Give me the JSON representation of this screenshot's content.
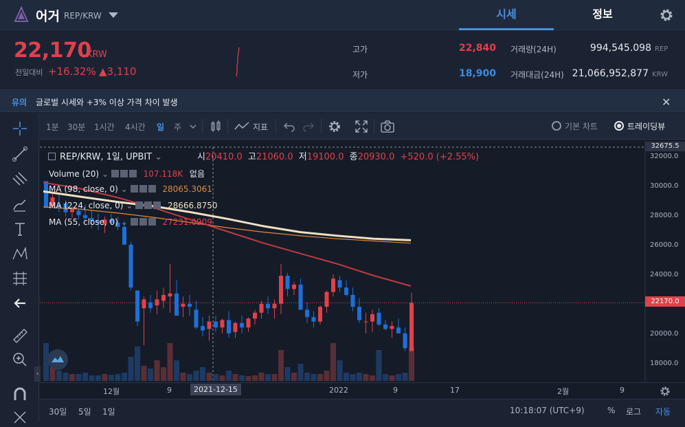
{
  "header": {
    "coin_name": "어거",
    "pair": "REP/KRW",
    "tabs": [
      {
        "label": "시세",
        "active": true
      },
      {
        "label": "정보",
        "active": false
      }
    ]
  },
  "price": {
    "current": "22,170",
    "unit": "KRW",
    "change_label": "전일대비",
    "change_pct": "+16.32%",
    "change_amt": "▲3,110"
  },
  "stats": {
    "high_label": "고가",
    "high": "22,840",
    "low_label": "저가",
    "low": "18,900",
    "volume_label": "거래량(24H)",
    "volume": "994,545.098",
    "volume_unit": "REP",
    "amount_label": "거래대금(24H)",
    "amount": "21,066,952,877",
    "amount_unit": "KRW"
  },
  "notice": {
    "tag": "유의",
    "text": "글로벌 시세와 +3% 이상 가격 차이 발생"
  },
  "toolbar": {
    "timeframes": [
      "1분",
      "30분",
      "1시간",
      "4시간",
      "일",
      "주"
    ],
    "active_timeframe": "일",
    "indicators_label": "지표",
    "basic_chart_label": "기본 차트",
    "tradingview_label": "트레이딩뷰"
  },
  "chart": {
    "symbol_line": "REP/KRW, 1일, UPBIT",
    "ohlc": {
      "o_label": "시",
      "o": "20410.0",
      "h_label": "고",
      "h": "21060.0",
      "l_label": "저",
      "l": "19100.0",
      "c_label": "종",
      "c": "20930.0",
      "change": "+520.0 (+2.55%)"
    },
    "legend": [
      {
        "name": "Volume (20)",
        "value": "107.118K",
        "extra": "없음",
        "color": "#e0414b"
      },
      {
        "name": "MA (98, close, 0)",
        "value": "28065.3061",
        "color": "#e08a3c"
      },
      {
        "name": "MA (224, close, 0)",
        "value": "28666.8750",
        "color": "#f0e0c0"
      },
      {
        "name": "MA (55, close, 0)",
        "value": "27231.0909",
        "color": "#e0414b"
      }
    ],
    "price_labels": [
      "32000.0",
      "30000.0",
      "28000.0",
      "26000.0",
      "24000.0",
      "22000.0",
      "20000.0",
      "18000.0"
    ],
    "top_label": "32675.5",
    "current_label": "22170.0",
    "date_labels": [
      "12월",
      "9",
      "2021-12-15",
      "2022",
      "9",
      "17",
      "2월",
      "9"
    ]
  },
  "chart_data": {
    "type": "candlestick",
    "ylim": [
      17000,
      33000
    ],
    "series": [
      {
        "name": "MA (224, close, 0)",
        "values": [
          29700,
          29350,
          29000,
          28700,
          28300,
          27850,
          27350,
          26950,
          26700,
          26500,
          26400
        ]
      },
      {
        "name": "MA (98, close, 0)",
        "values": [
          28650,
          28500,
          28250,
          27950,
          27600,
          27250,
          26950,
          26700,
          26500,
          26350,
          26200
        ]
      },
      {
        "name": "MA (55, close, 0)",
        "values": [
          30300,
          29900,
          29300,
          28600,
          27800,
          27000,
          26200,
          25500,
          24800,
          24000,
          23300
        ]
      }
    ]
  },
  "bottom": {
    "ranges": [
      "30일",
      "5일",
      "1일"
    ],
    "time": "10:18:07 (UTC+9)",
    "pct": "%",
    "log": "로그",
    "auto": "자동"
  },
  "colors": {
    "up": "#e0414b",
    "down": "#1e6fd9",
    "accent": "#4a90e2"
  }
}
